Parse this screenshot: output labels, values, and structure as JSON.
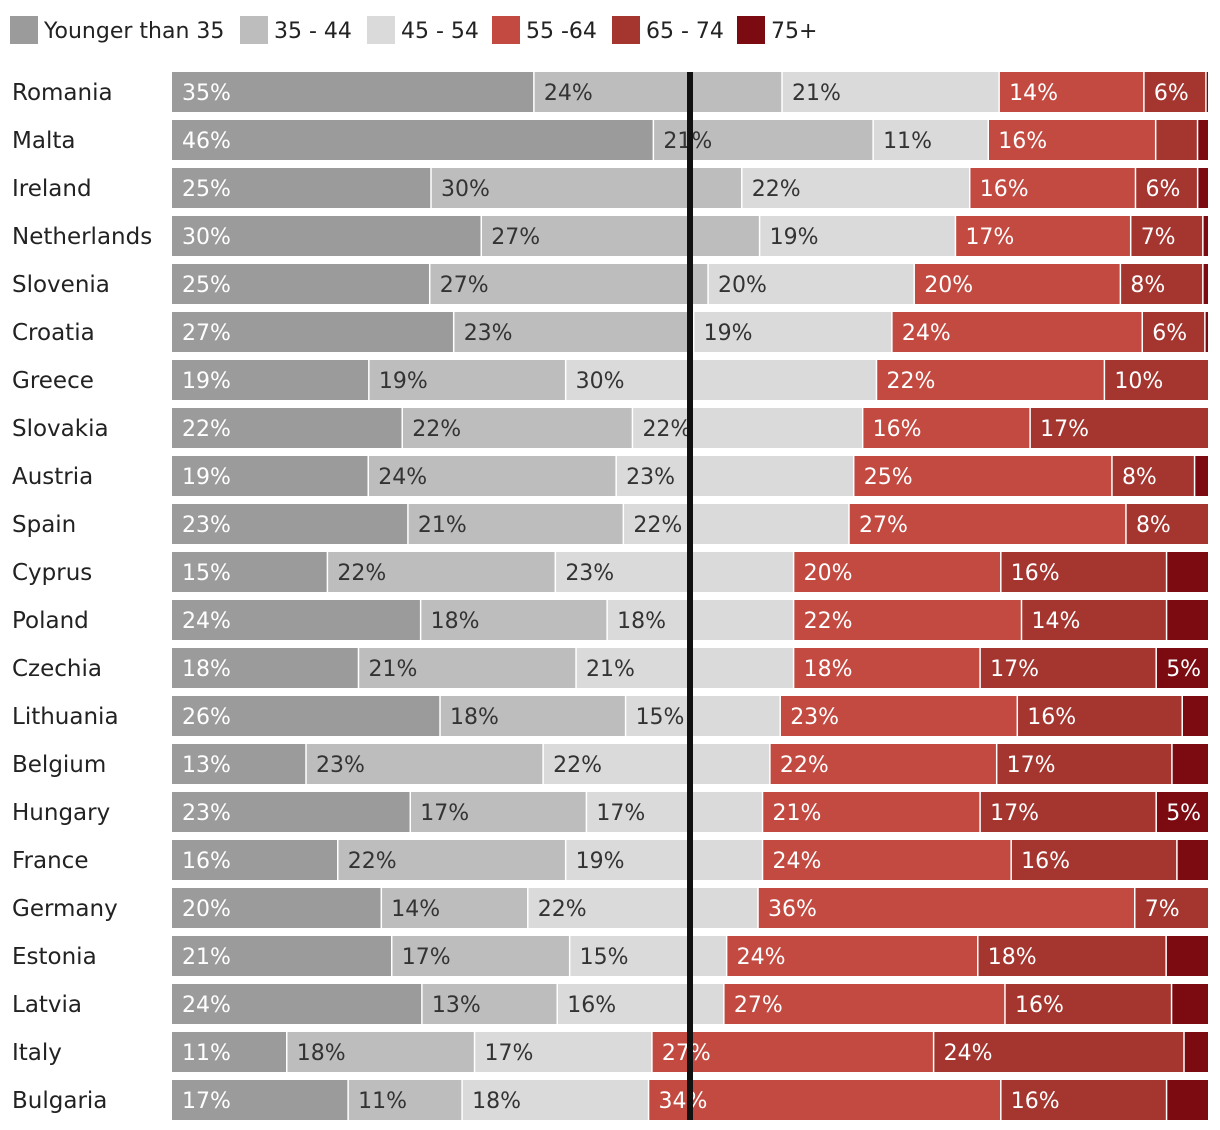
{
  "chart_data": {
    "type": "bar",
    "stacked": true,
    "orientation": "horizontal",
    "legend_position": "top",
    "series_names": [
      "Younger than 35",
      "35 - 44",
      "45 - 54",
      "55 -64",
      "65 - 74",
      "75+"
    ],
    "colors": [
      "#9b9b9b",
      "#bdbdbd",
      "#dadada",
      "#c34a41",
      "#a4352f",
      "#7b0a11"
    ],
    "label_colors": [
      "#ffffff",
      "#333333",
      "#333333",
      "#ffffff",
      "#ffffff",
      "#ffffff"
    ],
    "divider_colors": [
      "#eeeeee",
      "#ffffff",
      "#ffffff",
      "#ffffff",
      "#ffffff",
      "#ffffff"
    ],
    "reference_line_color": "#111111",
    "categories": [
      "Romania",
      "Malta",
      "Ireland",
      "Netherlands",
      "Slovenia",
      "Croatia",
      "Greece",
      "Slovakia",
      "Austria",
      "Spain",
      "Cyprus",
      "Poland",
      "Czechia",
      "Lithuania",
      "Belgium",
      "Hungary",
      "France",
      "Germany",
      "Estonia",
      "Latvia",
      "Italy",
      "Bulgaria"
    ],
    "values": [
      [
        35,
        24,
        21,
        14,
        6,
        0.2
      ],
      [
        46,
        21,
        11,
        16,
        4,
        1
      ],
      [
        25,
        30,
        22,
        16,
        6,
        1
      ],
      [
        30,
        27,
        19,
        17,
        7,
        0.5
      ],
      [
        25,
        27,
        20,
        20,
        8,
        0.5
      ],
      [
        27,
        23,
        19,
        24,
        6,
        0.3
      ],
      [
        19,
        19,
        30,
        22,
        10,
        0
      ],
      [
        22,
        22,
        22,
        16,
        17,
        0
      ],
      [
        19,
        24,
        23,
        25,
        8,
        1.3
      ],
      [
        23,
        21,
        22,
        27,
        8,
        0
      ],
      [
        15,
        22,
        23,
        20,
        16,
        4
      ],
      [
        24,
        18,
        18,
        22,
        14,
        4
      ],
      [
        18,
        21,
        21,
        18,
        17,
        5
      ],
      [
        26,
        18,
        15,
        23,
        16,
        2.5
      ],
      [
        13,
        23,
        22,
        22,
        17,
        3.5
      ],
      [
        23,
        17,
        17,
        21,
        17,
        5
      ],
      [
        16,
        22,
        19,
        24,
        16,
        3
      ],
      [
        20,
        14,
        22,
        36,
        7,
        0
      ],
      [
        21,
        17,
        15,
        24,
        18,
        4
      ],
      [
        24,
        13,
        16,
        27,
        16,
        3.5
      ],
      [
        11,
        18,
        17,
        27,
        24,
        2.3
      ],
      [
        17,
        11,
        18,
        34,
        16,
        4
      ]
    ],
    "labels": [
      [
        "35%",
        "24%",
        "21%",
        "14%",
        "6%",
        ""
      ],
      [
        "46%",
        "21%",
        "11%",
        "16%",
        "",
        ""
      ],
      [
        "25%",
        "30%",
        "22%",
        "16%",
        "6%",
        ""
      ],
      [
        "30%",
        "27%",
        "19%",
        "17%",
        "7%",
        ""
      ],
      [
        "25%",
        "27%",
        "20%",
        "20%",
        "8%",
        ""
      ],
      [
        "27%",
        "23%",
        "19%",
        "24%",
        "6%",
        ""
      ],
      [
        "19%",
        "19%",
        "30%",
        "22%",
        "10%",
        ""
      ],
      [
        "22%",
        "22%",
        "22%",
        "16%",
        "17%",
        ""
      ],
      [
        "19%",
        "24%",
        "23%",
        "25%",
        "8%",
        ""
      ],
      [
        "23%",
        "21%",
        "22%",
        "27%",
        "8%",
        ""
      ],
      [
        "15%",
        "22%",
        "23%",
        "20%",
        "16%",
        ""
      ],
      [
        "24%",
        "18%",
        "18%",
        "22%",
        "14%",
        ""
      ],
      [
        "18%",
        "21%",
        "21%",
        "18%",
        "17%",
        "5%"
      ],
      [
        "26%",
        "18%",
        "15%",
        "23%",
        "16%",
        ""
      ],
      [
        "13%",
        "23%",
        "22%",
        "22%",
        "17%",
        ""
      ],
      [
        "23%",
        "17%",
        "17%",
        "21%",
        "17%",
        "5%"
      ],
      [
        "16%",
        "22%",
        "19%",
        "24%",
        "16%",
        ""
      ],
      [
        "20%",
        "14%",
        "22%",
        "36%",
        "7%",
        ""
      ],
      [
        "21%",
        "17%",
        "15%",
        "24%",
        "18%",
        ""
      ],
      [
        "24%",
        "13%",
        "16%",
        "27%",
        "16%",
        ""
      ],
      [
        "11%",
        "18%",
        "17%",
        "27%",
        "24%",
        ""
      ],
      [
        "17%",
        "11%",
        "18%",
        "34%",
        "16%",
        ""
      ]
    ],
    "xlim": [
      0,
      100
    ],
    "reference_line": 50,
    "title": "",
    "xlabel": "",
    "ylabel": ""
  }
}
